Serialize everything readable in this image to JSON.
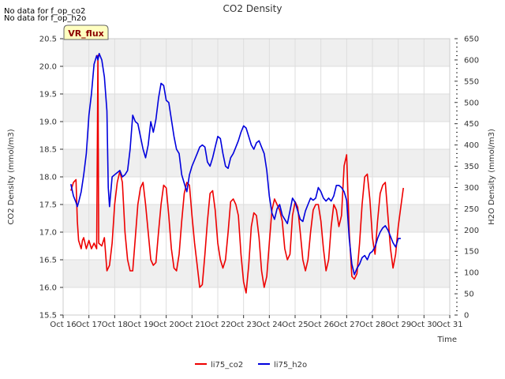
{
  "notices": [
    "No data for f_op_co2",
    "No data for f_op_h2o"
  ],
  "badge": "VR_flux",
  "chart_data": {
    "type": "line",
    "title": "CO2 Density",
    "xlabel": "Time",
    "ylabel_left": "CO2 Density (mmol/m3)",
    "ylabel_right": "H2O Density (mmol/m3)",
    "xlim": [
      16,
      31
    ],
    "x_ticks": [
      {
        "x": 16,
        "label": "Oct 16"
      },
      {
        "x": 17,
        "label": "Oct 17"
      },
      {
        "x": 18,
        "label": "Oct 18"
      },
      {
        "x": 19,
        "label": "Oct 19"
      },
      {
        "x": 20,
        "label": "Oct 20"
      },
      {
        "x": 21,
        "label": "Oct 21"
      },
      {
        "x": 22,
        "label": "Oct 22"
      },
      {
        "x": 23,
        "label": "Oct 23"
      },
      {
        "x": 24,
        "label": "Oct 24"
      },
      {
        "x": 25,
        "label": "Oct 25"
      },
      {
        "x": 26,
        "label": "Oct 26"
      },
      {
        "x": 27,
        "label": "Oct 27"
      },
      {
        "x": 28,
        "label": "Oct 28"
      },
      {
        "x": 29,
        "label": "Oct 29"
      },
      {
        "x": 30,
        "label": "Oct 30"
      },
      {
        "x": 31,
        "label": "Oct 31"
      }
    ],
    "ylim_left": [
      15.5,
      20.5
    ],
    "yticks_left": [
      "15.5",
      "16.0",
      "16.5",
      "17.0",
      "17.5",
      "18.0",
      "18.5",
      "19.0",
      "19.5",
      "20.0",
      "20.5"
    ],
    "ylim_right": [
      0,
      650
    ],
    "yticks_right": [
      "0",
      "50",
      "100",
      "150",
      "200",
      "250",
      "300",
      "350",
      "400",
      "450",
      "500",
      "550",
      "600",
      "650"
    ],
    "bands_left": [
      [
        16.0,
        16.5
      ],
      [
        17.0,
        17.5
      ],
      [
        18.0,
        18.5
      ],
      [
        19.0,
        19.5
      ],
      [
        20.0,
        20.5
      ]
    ],
    "series": [
      {
        "name": "li75_co2",
        "axis": "left",
        "color": "#ee0000",
        "points": [
          [
            16.3,
            17.75
          ],
          [
            16.4,
            17.9
          ],
          [
            16.5,
            17.95
          ],
          [
            16.55,
            17.2
          ],
          [
            16.6,
            16.85
          ],
          [
            16.7,
            16.7
          ],
          [
            16.75,
            16.85
          ],
          [
            16.8,
            16.9
          ],
          [
            16.9,
            16.7
          ],
          [
            17.0,
            16.85
          ],
          [
            17.1,
            16.7
          ],
          [
            17.2,
            16.8
          ],
          [
            17.3,
            16.7
          ],
          [
            17.35,
            20.2
          ],
          [
            17.38,
            16.8
          ],
          [
            17.5,
            16.75
          ],
          [
            17.6,
            16.9
          ],
          [
            17.7,
            16.3
          ],
          [
            17.8,
            16.4
          ],
          [
            17.9,
            16.8
          ],
          [
            18.0,
            17.5
          ],
          [
            18.1,
            17.9
          ],
          [
            18.2,
            18.1
          ],
          [
            18.3,
            17.9
          ],
          [
            18.4,
            17.0
          ],
          [
            18.5,
            16.5
          ],
          [
            18.6,
            16.3
          ],
          [
            18.7,
            16.3
          ],
          [
            18.8,
            16.9
          ],
          [
            18.9,
            17.5
          ],
          [
            19.0,
            17.8
          ],
          [
            19.1,
            17.9
          ],
          [
            19.2,
            17.5
          ],
          [
            19.3,
            17.0
          ],
          [
            19.4,
            16.5
          ],
          [
            19.5,
            16.4
          ],
          [
            19.6,
            16.45
          ],
          [
            19.7,
            17.0
          ],
          [
            19.8,
            17.5
          ],
          [
            19.9,
            17.85
          ],
          [
            20.0,
            17.8
          ],
          [
            20.1,
            17.3
          ],
          [
            20.2,
            16.7
          ],
          [
            20.3,
            16.35
          ],
          [
            20.4,
            16.3
          ],
          [
            20.5,
            16.6
          ],
          [
            20.6,
            17.2
          ],
          [
            20.7,
            17.7
          ],
          [
            20.8,
            17.9
          ],
          [
            20.9,
            17.85
          ],
          [
            21.0,
            17.3
          ],
          [
            21.1,
            16.8
          ],
          [
            21.2,
            16.4
          ],
          [
            21.3,
            16.0
          ],
          [
            21.4,
            16.05
          ],
          [
            21.5,
            16.6
          ],
          [
            21.6,
            17.2
          ],
          [
            21.7,
            17.7
          ],
          [
            21.8,
            17.75
          ],
          [
            21.9,
            17.4
          ],
          [
            22.0,
            16.8
          ],
          [
            22.1,
            16.5
          ],
          [
            22.2,
            16.35
          ],
          [
            22.3,
            16.5
          ],
          [
            22.4,
            17.0
          ],
          [
            22.5,
            17.55
          ],
          [
            22.6,
            17.6
          ],
          [
            22.7,
            17.5
          ],
          [
            22.8,
            17.3
          ],
          [
            22.9,
            16.6
          ],
          [
            23.0,
            16.1
          ],
          [
            23.1,
            15.9
          ],
          [
            23.2,
            16.4
          ],
          [
            23.3,
            17.1
          ],
          [
            23.4,
            17.35
          ],
          [
            23.5,
            17.3
          ],
          [
            23.6,
            16.9
          ],
          [
            23.7,
            16.3
          ],
          [
            23.8,
            16.0
          ],
          [
            23.9,
            16.2
          ],
          [
            24.0,
            16.8
          ],
          [
            24.1,
            17.4
          ],
          [
            24.2,
            17.6
          ],
          [
            24.3,
            17.5
          ],
          [
            24.4,
            17.4
          ],
          [
            24.5,
            17.2
          ],
          [
            24.6,
            16.7
          ],
          [
            24.7,
            16.5
          ],
          [
            24.8,
            16.6
          ],
          [
            24.9,
            17.3
          ],
          [
            25.0,
            17.55
          ],
          [
            25.1,
            17.45
          ],
          [
            25.2,
            17.0
          ],
          [
            25.3,
            16.5
          ],
          [
            25.4,
            16.3
          ],
          [
            25.5,
            16.5
          ],
          [
            25.6,
            17.0
          ],
          [
            25.7,
            17.4
          ],
          [
            25.8,
            17.5
          ],
          [
            25.9,
            17.5
          ],
          [
            26.0,
            17.2
          ],
          [
            26.1,
            16.7
          ],
          [
            26.2,
            16.3
          ],
          [
            26.3,
            16.5
          ],
          [
            26.4,
            17.1
          ],
          [
            26.5,
            17.5
          ],
          [
            26.6,
            17.4
          ],
          [
            26.7,
            17.1
          ],
          [
            26.8,
            17.3
          ],
          [
            26.9,
            18.2
          ],
          [
            27.0,
            18.4
          ],
          [
            27.1,
            17.0
          ],
          [
            27.2,
            16.2
          ],
          [
            27.3,
            16.15
          ],
          [
            27.4,
            16.25
          ],
          [
            27.5,
            16.8
          ],
          [
            27.6,
            17.5
          ],
          [
            27.7,
            18.0
          ],
          [
            27.8,
            18.05
          ],
          [
            27.9,
            17.6
          ],
          [
            28.0,
            16.9
          ],
          [
            28.1,
            16.6
          ],
          [
            28.2,
            17.2
          ],
          [
            28.3,
            17.7
          ],
          [
            28.4,
            17.85
          ],
          [
            28.5,
            17.9
          ],
          [
            28.6,
            17.3
          ],
          [
            28.7,
            16.7
          ],
          [
            28.8,
            16.35
          ],
          [
            28.9,
            16.6
          ],
          [
            29.0,
            17.1
          ],
          [
            29.1,
            17.45
          ],
          [
            29.2,
            17.8
          ]
        ]
      },
      {
        "name": "li75_h2o",
        "axis": "right",
        "color": "#0000dd",
        "points": [
          [
            16.3,
            308
          ],
          [
            16.4,
            280
          ],
          [
            16.5,
            265
          ],
          [
            16.55,
            255
          ],
          [
            16.6,
            265
          ],
          [
            16.7,
            290
          ],
          [
            16.8,
            330
          ],
          [
            16.9,
            380
          ],
          [
            17.0,
            470
          ],
          [
            17.1,
            520
          ],
          [
            17.2,
            590
          ],
          [
            17.3,
            610
          ],
          [
            17.35,
            600
          ],
          [
            17.4,
            615
          ],
          [
            17.5,
            600
          ],
          [
            17.6,
            560
          ],
          [
            17.65,
            520
          ],
          [
            17.7,
            480
          ],
          [
            17.75,
            300
          ],
          [
            17.8,
            255
          ],
          [
            17.9,
            325
          ],
          [
            18.0,
            330
          ],
          [
            18.1,
            335
          ],
          [
            18.2,
            340
          ],
          [
            18.3,
            325
          ],
          [
            18.4,
            330
          ],
          [
            18.5,
            340
          ],
          [
            18.6,
            390
          ],
          [
            18.7,
            470
          ],
          [
            18.8,
            455
          ],
          [
            18.9,
            450
          ],
          [
            19.0,
            420
          ],
          [
            19.1,
            390
          ],
          [
            19.2,
            370
          ],
          [
            19.3,
            400
          ],
          [
            19.4,
            455
          ],
          [
            19.5,
            430
          ],
          [
            19.6,
            460
          ],
          [
            19.7,
            510
          ],
          [
            19.8,
            545
          ],
          [
            19.9,
            540
          ],
          [
            20.0,
            505
          ],
          [
            20.1,
            500
          ],
          [
            20.2,
            460
          ],
          [
            20.3,
            420
          ],
          [
            20.4,
            390
          ],
          [
            20.5,
            380
          ],
          [
            20.6,
            330
          ],
          [
            20.7,
            310
          ],
          [
            20.8,
            290
          ],
          [
            20.9,
            330
          ],
          [
            21.0,
            350
          ],
          [
            21.1,
            365
          ],
          [
            21.2,
            380
          ],
          [
            21.3,
            395
          ],
          [
            21.4,
            400
          ],
          [
            21.5,
            395
          ],
          [
            21.6,
            360
          ],
          [
            21.7,
            350
          ],
          [
            21.8,
            370
          ],
          [
            21.9,
            395
          ],
          [
            22.0,
            420
          ],
          [
            22.1,
            415
          ],
          [
            22.2,
            380
          ],
          [
            22.3,
            350
          ],
          [
            22.4,
            345
          ],
          [
            22.5,
            370
          ],
          [
            22.6,
            380
          ],
          [
            22.7,
            395
          ],
          [
            22.8,
            410
          ],
          [
            22.9,
            430
          ],
          [
            23.0,
            445
          ],
          [
            23.1,
            440
          ],
          [
            23.2,
            420
          ],
          [
            23.3,
            400
          ],
          [
            23.4,
            390
          ],
          [
            23.5,
            405
          ],
          [
            23.6,
            410
          ],
          [
            23.7,
            395
          ],
          [
            23.8,
            380
          ],
          [
            23.9,
            340
          ],
          [
            24.0,
            280
          ],
          [
            24.1,
            240
          ],
          [
            24.2,
            225
          ],
          [
            24.3,
            250
          ],
          [
            24.4,
            260
          ],
          [
            24.5,
            235
          ],
          [
            24.6,
            225
          ],
          [
            24.7,
            215
          ],
          [
            24.8,
            245
          ],
          [
            24.9,
            275
          ],
          [
            25.0,
            265
          ],
          [
            25.1,
            245
          ],
          [
            25.2,
            225
          ],
          [
            25.3,
            220
          ],
          [
            25.4,
            245
          ],
          [
            25.5,
            260
          ],
          [
            25.6,
            275
          ],
          [
            25.7,
            270
          ],
          [
            25.8,
            275
          ],
          [
            25.9,
            300
          ],
          [
            26.0,
            290
          ],
          [
            26.1,
            275
          ],
          [
            26.2,
            268
          ],
          [
            26.3,
            275
          ],
          [
            26.4,
            268
          ],
          [
            26.5,
            280
          ],
          [
            26.6,
            305
          ],
          [
            26.7,
            305
          ],
          [
            26.8,
            300
          ],
          [
            26.9,
            290
          ],
          [
            27.0,
            270
          ],
          [
            27.1,
            180
          ],
          [
            27.2,
            120
          ],
          [
            27.3,
            95
          ],
          [
            27.4,
            110
          ],
          [
            27.5,
            120
          ],
          [
            27.6,
            135
          ],
          [
            27.7,
            140
          ],
          [
            27.8,
            130
          ],
          [
            27.9,
            145
          ],
          [
            28.0,
            150
          ],
          [
            28.1,
            160
          ],
          [
            28.2,
            180
          ],
          [
            28.3,
            195
          ],
          [
            28.4,
            205
          ],
          [
            28.5,
            210
          ],
          [
            28.6,
            200
          ],
          [
            28.7,
            185
          ],
          [
            28.8,
            170
          ],
          [
            28.9,
            160
          ],
          [
            29.0,
            180
          ],
          [
            29.1,
            180
          ]
        ]
      }
    ],
    "legend_position": "bottom-center"
  }
}
